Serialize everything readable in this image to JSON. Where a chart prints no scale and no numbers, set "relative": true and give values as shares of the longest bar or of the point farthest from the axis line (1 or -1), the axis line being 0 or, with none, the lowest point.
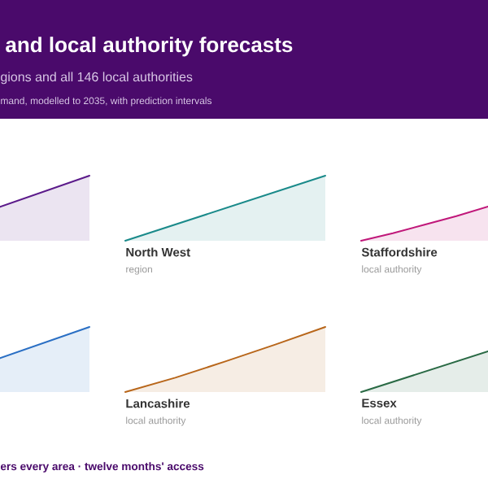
{
  "chart_data": [
    {
      "type": "other",
      "title": "and local authority forecasts",
      "subtitle": "gions and all 146 local authorities",
      "annotations": [
        "mand, modelled to 2035, with prediction intervals",
        "ers every area · twelve months' access"
      ]
    },
    {
      "type": "area",
      "relative": true,
      "color": "#5b1a8a",
      "categories": [
        null,
        null
      ],
      "values": [
        0.52,
        1
      ]
    },
    {
      "type": "area",
      "relative": true,
      "title": "North West",
      "subtitle": "region",
      "color": "#1a8a8a",
      "categories": [
        null,
        null
      ],
      "values": [
        0,
        1
      ]
    },
    {
      "type": "area",
      "relative": true,
      "title": "Staffordshire",
      "subtitle": "local authority",
      "color": "#c0187a",
      "categories": [
        null,
        null,
        null,
        null,
        null
      ],
      "values": [
        0,
        0.22,
        0.47,
        0.72,
        1
      ]
    },
    {
      "type": "area",
      "relative": true,
      "color": "#2a6fc4",
      "categories": [
        null,
        null
      ],
      "values": [
        0.52,
        1
      ]
    },
    {
      "type": "area",
      "relative": true,
      "title": "Lancashire",
      "subtitle": "local authority",
      "color": "#b8661a",
      "categories": [
        null,
        null,
        null,
        null,
        null
      ],
      "values": [
        0,
        0.22,
        0.47,
        0.73,
        1
      ]
    },
    {
      "type": "area",
      "relative": true,
      "title": "Essex",
      "subtitle": "local authority",
      "color": "#2a6a45",
      "categories": [
        null,
        null
      ],
      "values": [
        0,
        1
      ]
    }
  ]
}
